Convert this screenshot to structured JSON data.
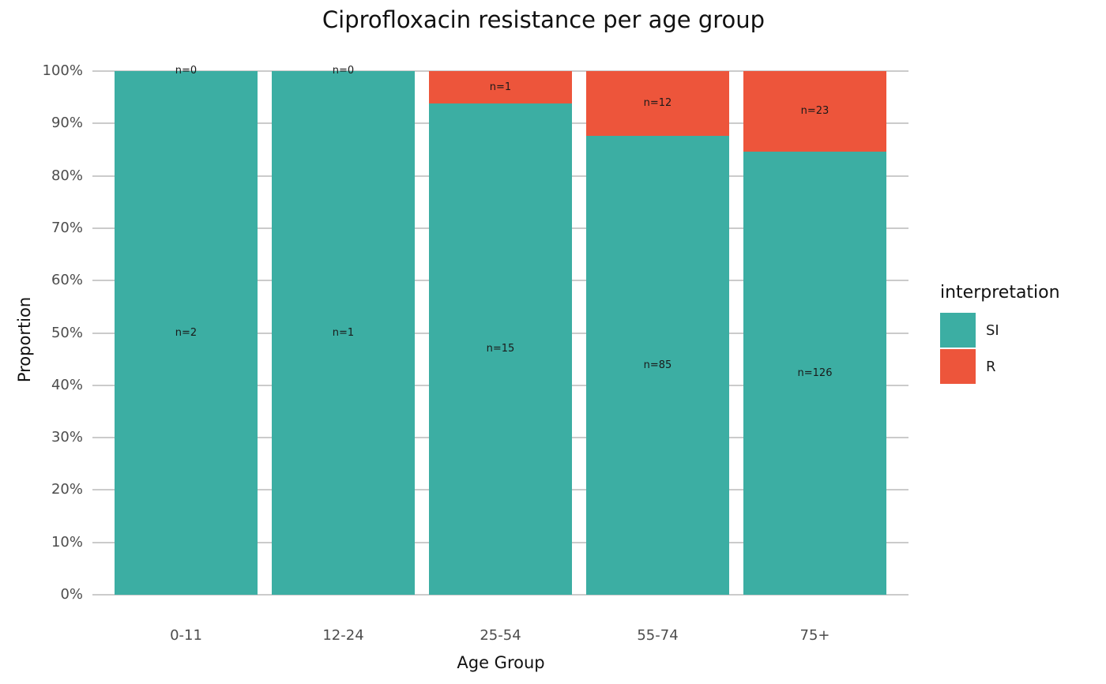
{
  "chart_data": {
    "type": "bar",
    "variant": "stacked-percent",
    "title": "Ciprofloxacin resistance per age group",
    "xlabel": "Age Group",
    "ylabel": "Proportion",
    "legend_title": "interpretation",
    "legend_position": "right",
    "grid": "horizontal-major-only",
    "categories": [
      "0-11",
      "12-24",
      "25-54",
      "55-74",
      "75+"
    ],
    "series": [
      {
        "name": "R",
        "stack_position": "top",
        "color": "#ED553B",
        "counts": [
          0,
          0,
          1,
          12,
          23
        ],
        "labels": [
          "n=0",
          "n=0",
          "n=1",
          "n=12",
          "n=23"
        ]
      },
      {
        "name": "SI",
        "stack_position": "bottom",
        "color": "#3CAEA3",
        "counts": [
          2,
          1,
          15,
          85,
          126
        ],
        "labels": [
          "n=2",
          "n=1",
          "n=15",
          "n=85",
          "n=126"
        ]
      }
    ],
    "legend_order": [
      "SI",
      "R"
    ],
    "y_ticks": [
      "0%",
      "10%",
      "20%",
      "30%",
      "40%",
      "50%",
      "60%",
      "70%",
      "80%",
      "90%",
      "100%"
    ],
    "ylim": [
      0,
      100
    ]
  },
  "colors": {
    "si": "#3CAEA3",
    "r": "#ED553B",
    "gridline": "#cbcbcb",
    "tick_text": "#4d4d4d",
    "title_text": "#111111",
    "bar_label_text": "#1a1a1a",
    "background": "#ffffff"
  }
}
